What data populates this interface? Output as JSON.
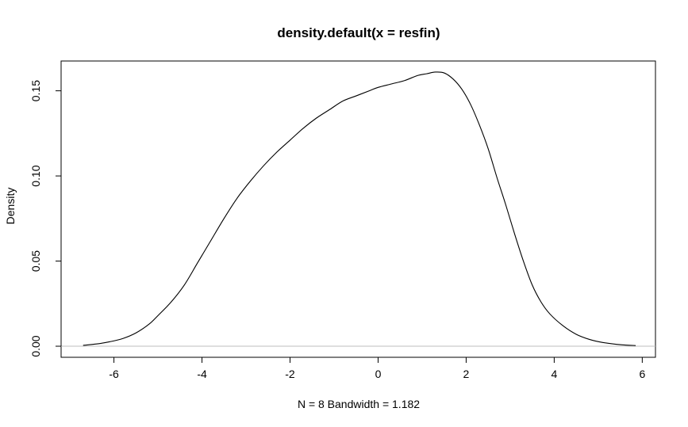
{
  "chart_data": {
    "type": "line",
    "title": "density.default(x = resfin)",
    "xlabel": "N = 8   Bandwidth = 1.182",
    "ylabel": "Density",
    "xlim": [
      -7.2,
      6.3
    ],
    "ylim": [
      -0.0065,
      0.1675
    ],
    "x_ticks": [
      -6,
      -4,
      -2,
      0,
      2,
      4,
      6
    ],
    "x_tick_labels": [
      "-6",
      "-4",
      "-2",
      "0",
      "2",
      "4",
      "6"
    ],
    "y_ticks": [
      0.0,
      0.05,
      0.1,
      0.15
    ],
    "y_tick_labels": [
      "0.00",
      "0.05",
      "0.10",
      "0.15"
    ],
    "baseline_color": "#bebebe",
    "line_color": "#000000",
    "grid": false,
    "series": [
      {
        "x": [
          -6.7,
          -6.4,
          -6.1,
          -5.8,
          -5.5,
          -5.2,
          -5.0,
          -4.7,
          -4.4,
          -4.1,
          -3.8,
          -3.5,
          -3.2,
          -2.9,
          -2.6,
          -2.3,
          -2.0,
          -1.7,
          -1.4,
          -1.1,
          -0.8,
          -0.5,
          -0.2,
          0.0,
          0.3,
          0.6,
          0.9,
          1.1,
          1.3,
          1.5,
          1.7,
          1.9,
          2.1,
          2.3,
          2.5,
          2.7,
          2.9,
          3.1,
          3.3,
          3.5,
          3.7,
          3.9,
          4.2,
          4.5,
          4.8,
          5.1,
          5.5,
          5.85
        ],
        "y": [
          0.0005,
          0.0013,
          0.0026,
          0.0045,
          0.0078,
          0.013,
          0.018,
          0.026,
          0.036,
          0.049,
          0.062,
          0.075,
          0.087,
          0.097,
          0.106,
          0.114,
          0.121,
          0.128,
          0.134,
          0.139,
          0.144,
          0.147,
          0.15,
          0.152,
          0.154,
          0.156,
          0.159,
          0.16,
          0.161,
          0.1605,
          0.157,
          0.151,
          0.142,
          0.13,
          0.116,
          0.099,
          0.083,
          0.066,
          0.05,
          0.036,
          0.026,
          0.019,
          0.012,
          0.007,
          0.004,
          0.0022,
          0.0009,
          0.0004
        ]
      }
    ]
  }
}
